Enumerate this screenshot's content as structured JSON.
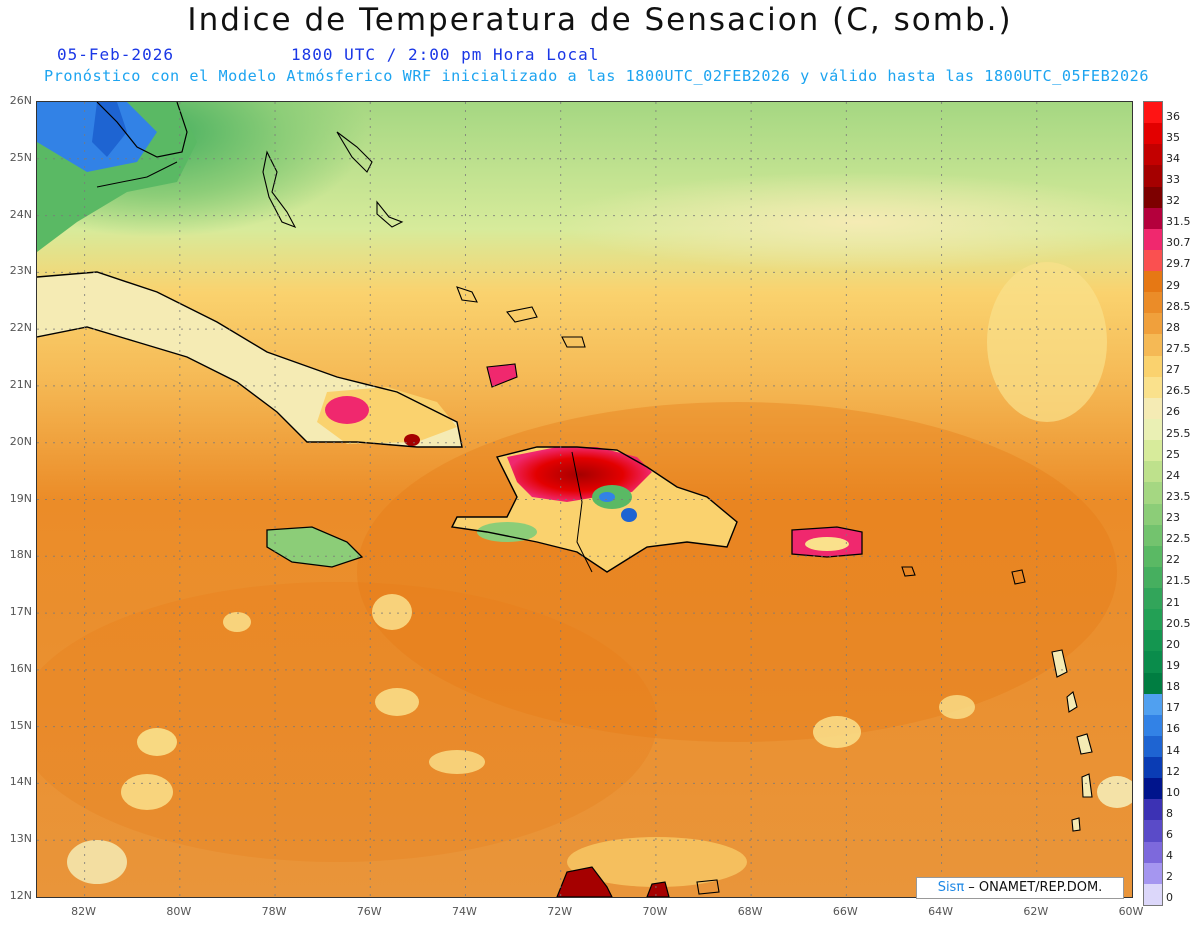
{
  "title": "Indice de Temperatura de Sensacion (C, somb.)",
  "date_label": "05-Feb-2026",
  "time_label": "1800 UTC / 2:00 pm Hora Local",
  "model_info": "Pronóstico con el Modelo Atmósferico WRF inicializado a las 1800UTC_02FEB2026 y válido hasta las  1800UTC_05FEB2026",
  "latitude_labels": [
    "26N",
    "25N",
    "24N",
    "23N",
    "22N",
    "21N",
    "20N",
    "19N",
    "18N",
    "17N",
    "16N",
    "15N",
    "14N",
    "13N",
    "12N"
  ],
  "longitude_labels": [
    "82W",
    "80W",
    "78W",
    "76W",
    "74W",
    "72W",
    "70W",
    "68W",
    "66W",
    "64W",
    "62W",
    "60W"
  ],
  "colorbar": {
    "levels": [
      "36",
      "35",
      "34",
      "33",
      "32",
      "31.5",
      "30.7",
      "29.7",
      "29",
      "28.5",
      "28",
      "27.5",
      "27",
      "26.5",
      "26",
      "25.5",
      "25",
      "24",
      "23.5",
      "23",
      "22.5",
      "22",
      "21.5",
      "21",
      "20.5",
      "20",
      "19",
      "18",
      "17",
      "16",
      "14",
      "12",
      "10",
      "8",
      "6",
      "4",
      "2",
      "0"
    ],
    "colors": [
      "#ff1414",
      "#e30000",
      "#c30000",
      "#a50000",
      "#7d0000",
      "#b4003c",
      "#f0286e",
      "#fa5050",
      "#e67814",
      "#eb8c28",
      "#f0a03c",
      "#f5b955",
      "#fad26e",
      "#fae18c",
      "#f5ebb4",
      "#eaf0b4",
      "#d7eb9b",
      "#bee18c",
      "#a5d782",
      "#8ccd78",
      "#73c36e",
      "#5ab964",
      "#46af5f",
      "#32a55a",
      "#23a055",
      "#149650",
      "#0a8c4b",
      "#007d41",
      "#50a0f0",
      "#3282e6",
      "#1e64d2",
      "#0a3cb4",
      "#00148c",
      "#3c32b4",
      "#5a4bc8",
      "#7d69dc",
      "#a596f0",
      "#dcd7fa"
    ]
  },
  "credit": {
    "brand": "Sisπ",
    "text": " – ONAMET/REP.DOM."
  }
}
